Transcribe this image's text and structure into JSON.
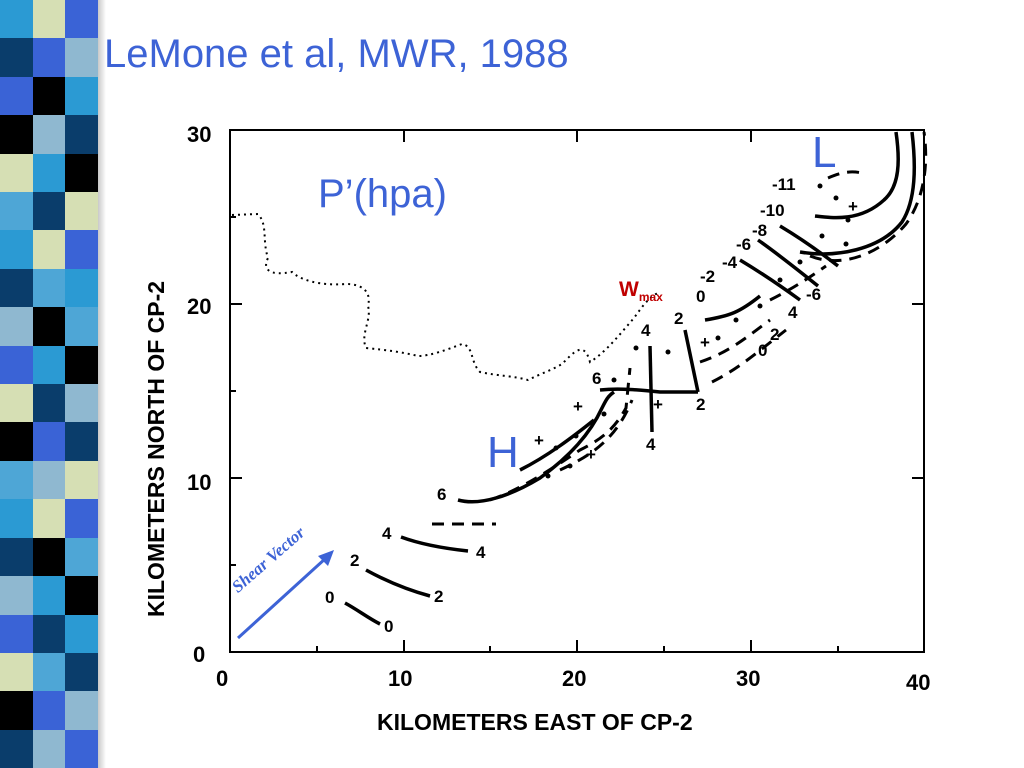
{
  "title": "LeMone et al, MWR, 1988",
  "figure": {
    "overlay_title": "P’(hpa)",
    "low_label": "L",
    "high_label": "H",
    "wmax_main": "W",
    "wmax_sub": "max",
    "shear_label": "Shear Vector",
    "xlabel": "KILOMETERS EAST OF CP-2",
    "ylabel": "KILOMETERS NORTH OF CP-2",
    "x_ticks": [
      "0",
      "10",
      "20",
      "30",
      "40"
    ],
    "y_ticks": [
      "0",
      "10",
      "20",
      "30"
    ],
    "contour_labels": [
      "0",
      "0",
      "2",
      "2",
      "4",
      "4",
      "6",
      "6",
      "4",
      "4",
      "2",
      "2",
      "-2",
      "0",
      "-4",
      "-6",
      "-8",
      "-10",
      "-11",
      "-6",
      "4",
      "0",
      "2",
      "+",
      "+",
      "+",
      "+",
      "+",
      "+"
    ]
  },
  "colors": {
    "accent_blue": "#3d63d6",
    "wmax_red": "#c00000",
    "sidebar": [
      "#1f4e79",
      "#2b9ad3",
      "#4ea6d6",
      "#8fb8d0",
      "#d6dfb4",
      "#000000",
      "#3a63d6",
      "#0a3d6b"
    ]
  },
  "sidebar": {
    "columns": [
      [
        "#2b9ad3",
        "#0a3d6b",
        "#3a63d6",
        "#000000",
        "#d6dfb4",
        "#4ea6d6",
        "#2b9ad3",
        "#0a3d6b",
        "#8fb8d0",
        "#3a63d6",
        "#d6dfb4",
        "#000000",
        "#4ea6d6",
        "#2b9ad3",
        "#0a3d6b",
        "#8fb8d0",
        "#3a63d6",
        "#d6dfb4",
        "#000000",
        "#0a3d6b"
      ],
      [
        "#d6dfb4",
        "#3a63d6",
        "#000000",
        "#8fb8d0",
        "#2b9ad3",
        "#0a3d6b",
        "#d6dfb4",
        "#4ea6d6",
        "#000000",
        "#2b9ad3",
        "#0a3d6b",
        "#3a63d6",
        "#8fb8d0",
        "#d6dfb4",
        "#000000",
        "#2b9ad3",
        "#0a3d6b",
        "#4ea6d6",
        "#3a63d6",
        "#8fb8d0"
      ],
      [
        "#3a63d6",
        "#8fb8d0",
        "#2b9ad3",
        "#0a3d6b",
        "#000000",
        "#d6dfb4",
        "#3a63d6",
        "#2b9ad3",
        "#4ea6d6",
        "#000000",
        "#8fb8d0",
        "#0a3d6b",
        "#d6dfb4",
        "#3a63d6",
        "#4ea6d6",
        "#000000",
        "#2b9ad3",
        "#0a3d6b",
        "#8fb8d0",
        "#3a63d6"
      ]
    ]
  }
}
